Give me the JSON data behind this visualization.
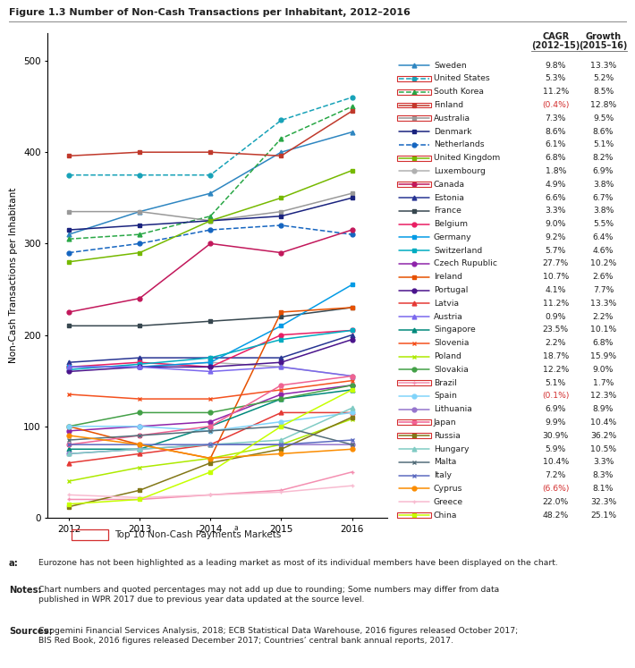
{
  "title": "Figure 1.3 Number of Non-Cash Transactions per Inhabitant, 2012–2016",
  "ylabel": "Non-Cash Transactions per Inhabitant",
  "years": [
    2012,
    2013,
    2014,
    2015,
    2016
  ],
  "ylim": [
    0,
    530
  ],
  "yticks": [
    0,
    100,
    200,
    300,
    400,
    500
  ],
  "series": [
    {
      "name": "Sweden",
      "color": "#2e86c1",
      "marker": "^",
      "linestyle": "-",
      "top10": false,
      "values": [
        310,
        335,
        355,
        400,
        422
      ],
      "cagr": "9.8%",
      "growth": "13.3%"
    },
    {
      "name": "United States",
      "color": "#17a2b8",
      "marker": "o",
      "linestyle": "--",
      "top10": true,
      "values": [
        375,
        375,
        375,
        435,
        460
      ],
      "cagr": "5.3%",
      "growth": "5.2%"
    },
    {
      "name": "South Korea",
      "color": "#28a745",
      "marker": "^",
      "linestyle": "--",
      "top10": true,
      "values": [
        305,
        310,
        330,
        415,
        450
      ],
      "cagr": "11.2%",
      "growth": "8.5%"
    },
    {
      "name": "Finland",
      "color": "#c0392b",
      "marker": "s",
      "linestyle": "-",
      "top10": true,
      "values": [
        396,
        400,
        400,
        396,
        445
      ],
      "cagr": "(0.4%)",
      "growth": "12.8%"
    },
    {
      "name": "Australia",
      "color": "#999999",
      "marker": "s",
      "linestyle": "-",
      "top10": true,
      "values": [
        335,
        335,
        325,
        335,
        355
      ],
      "cagr": "7.3%",
      "growth": "9.5%"
    },
    {
      "name": "Denmark",
      "color": "#1a237e",
      "marker": "s",
      "linestyle": "-",
      "top10": false,
      "values": [
        315,
        320,
        325,
        330,
        350
      ],
      "cagr": "8.6%",
      "growth": "8.6%"
    },
    {
      "name": "Netherlands",
      "color": "#1565c0",
      "marker": "o",
      "linestyle": "--",
      "top10": false,
      "values": [
        290,
        300,
        315,
        320,
        310
      ],
      "cagr": "6.1%",
      "growth": "5.1%"
    },
    {
      "name": "United Kingdom",
      "color": "#76b900",
      "marker": "s",
      "linestyle": "-",
      "top10": true,
      "values": [
        280,
        290,
        325,
        350,
        380
      ],
      "cagr": "6.8%",
      "growth": "8.2%"
    },
    {
      "name": "Luxembourg",
      "color": "#b0b0b0",
      "marker": "o",
      "linestyle": "-",
      "top10": false,
      "values": [
        165,
        165,
        170,
        165,
        155
      ],
      "cagr": "1.8%",
      "growth": "6.9%"
    },
    {
      "name": "Canada",
      "color": "#c2185b",
      "marker": "o",
      "linestyle": "-",
      "top10": true,
      "values": [
        225,
        240,
        300,
        290,
        315
      ],
      "cagr": "4.9%",
      "growth": "3.8%"
    },
    {
      "name": "Estonia",
      "color": "#283593",
      "marker": "^",
      "linestyle": "-",
      "top10": false,
      "values": [
        170,
        175,
        175,
        175,
        200
      ],
      "cagr": "6.6%",
      "growth": "6.7%"
    },
    {
      "name": "France",
      "color": "#37474f",
      "marker": "s",
      "linestyle": "-",
      "top10": false,
      "values": [
        210,
        210,
        215,
        220,
        230
      ],
      "cagr": "3.3%",
      "growth": "3.8%"
    },
    {
      "name": "Belgium",
      "color": "#e91e63",
      "marker": "o",
      "linestyle": "-",
      "top10": false,
      "values": [
        165,
        170,
        165,
        200,
        205
      ],
      "cagr": "9.0%",
      "growth": "5.5%"
    },
    {
      "name": "Germany",
      "color": "#039be5",
      "marker": "s",
      "linestyle": "-",
      "top10": false,
      "values": [
        165,
        165,
        170,
        210,
        255
      ],
      "cagr": "9.2%",
      "growth": "6.4%"
    },
    {
      "name": "Switzerland",
      "color": "#00acc1",
      "marker": "s",
      "linestyle": "-",
      "top10": false,
      "values": [
        162,
        168,
        175,
        195,
        205
      ],
      "cagr": "5.7%",
      "growth": "4.6%"
    },
    {
      "name": "Czech Rupublic",
      "color": "#8e24aa",
      "marker": "o",
      "linestyle": "-",
      "top10": false,
      "values": [
        95,
        100,
        105,
        135,
        145
      ],
      "cagr": "27.7%",
      "growth": "10.2%"
    },
    {
      "name": "Ireland",
      "color": "#e65100",
      "marker": "s",
      "linestyle": "-",
      "top10": false,
      "values": [
        100,
        80,
        65,
        225,
        230
      ],
      "cagr": "10.7%",
      "growth": "2.6%"
    },
    {
      "name": "Portugal",
      "color": "#4a148c",
      "marker": "o",
      "linestyle": "-",
      "top10": false,
      "values": [
        160,
        165,
        165,
        170,
        195
      ],
      "cagr": "4.1%",
      "growth": "7.7%"
    },
    {
      "name": "Latvia",
      "color": "#e53935",
      "marker": "^",
      "linestyle": "-",
      "top10": false,
      "values": [
        60,
        70,
        80,
        115,
        115
      ],
      "cagr": "11.2%",
      "growth": "13.3%"
    },
    {
      "name": "Austria",
      "color": "#7b68ee",
      "marker": "^",
      "linestyle": "-",
      "top10": false,
      "values": [
        165,
        165,
        160,
        165,
        155
      ],
      "cagr": "0.9%",
      "growth": "2.2%"
    },
    {
      "name": "Singapore",
      "color": "#00897b",
      "marker": "^",
      "linestyle": "-",
      "top10": false,
      "values": [
        75,
        75,
        100,
        130,
        140
      ],
      "cagr": "23.5%",
      "growth": "10.1%"
    },
    {
      "name": "Slovenia",
      "color": "#f4511e",
      "marker": "x",
      "linestyle": "-",
      "top10": false,
      "values": [
        135,
        130,
        130,
        140,
        150
      ],
      "cagr": "2.2%",
      "growth": "6.8%"
    },
    {
      "name": "Poland",
      "color": "#aeea00",
      "marker": "x",
      "linestyle": "-",
      "top10": false,
      "values": [
        40,
        55,
        65,
        80,
        108
      ],
      "cagr": "18.7%",
      "growth": "15.9%"
    },
    {
      "name": "Slovakia",
      "color": "#43a047",
      "marker": "o",
      "linestyle": "-",
      "top10": false,
      "values": [
        100,
        115,
        115,
        130,
        145
      ],
      "cagr": "12.2%",
      "growth": "9.0%"
    },
    {
      "name": "Brazil",
      "color": "#f48fb1",
      "marker": "+",
      "linestyle": "-",
      "top10": true,
      "values": [
        20,
        20,
        25,
        30,
        50
      ],
      "cagr": "5.1%",
      "growth": "1.7%"
    },
    {
      "name": "Spain",
      "color": "#81d4fa",
      "marker": "o",
      "linestyle": "-",
      "top10": false,
      "values": [
        100,
        100,
        95,
        105,
        115
      ],
      "cagr": "(0.1%)",
      "growth": "12.3%"
    },
    {
      "name": "Lithuania",
      "color": "#9575cd",
      "marker": "o",
      "linestyle": "-",
      "top10": false,
      "values": [
        70,
        75,
        80,
        80,
        80
      ],
      "cagr": "6.9%",
      "growth": "8.9%"
    },
    {
      "name": "Japan",
      "color": "#f06292",
      "marker": "o",
      "linestyle": "-",
      "top10": true,
      "values": [
        80,
        90,
        100,
        145,
        155
      ],
      "cagr": "9.9%",
      "growth": "10.4%"
    },
    {
      "name": "Russia",
      "color": "#827717",
      "marker": "s",
      "linestyle": "-",
      "top10": true,
      "values": [
        12,
        30,
        60,
        75,
        110
      ],
      "cagr": "30.9%",
      "growth": "36.2%"
    },
    {
      "name": "Hungary",
      "color": "#80cbc4",
      "marker": "^",
      "linestyle": "-",
      "top10": false,
      "values": [
        70,
        75,
        80,
        85,
        120
      ],
      "cagr": "5.9%",
      "growth": "10.5%"
    },
    {
      "name": "Malta",
      "color": "#546e7a",
      "marker": "x",
      "linestyle": "-",
      "top10": false,
      "values": [
        85,
        90,
        95,
        100,
        80
      ],
      "cagr": "10.4%",
      "growth": "3.3%"
    },
    {
      "name": "Italy",
      "color": "#5c6bc0",
      "marker": "x",
      "linestyle": "-",
      "top10": false,
      "values": [
        80,
        80,
        80,
        80,
        85
      ],
      "cagr": "7.2%",
      "growth": "8.3%"
    },
    {
      "name": "Cyprus",
      "color": "#fb8c00",
      "marker": "o",
      "linestyle": "-",
      "top10": false,
      "values": [
        90,
        80,
        65,
        70,
        75
      ],
      "cagr": "(6.6%)",
      "growth": "8.1%"
    },
    {
      "name": "Greece",
      "color": "#f8bbd0",
      "marker": "+",
      "linestyle": "-",
      "top10": false,
      "values": [
        25,
        22,
        25,
        28,
        35
      ],
      "cagr": "22.0%",
      "growth": "32.3%"
    },
    {
      "name": "China",
      "color": "#c6ff00",
      "marker": "s",
      "linestyle": "-",
      "top10": true,
      "values": [
        15,
        20,
        50,
        100,
        140
      ],
      "cagr": "48.2%",
      "growth": "25.1%"
    }
  ],
  "background_color": "#ffffff"
}
